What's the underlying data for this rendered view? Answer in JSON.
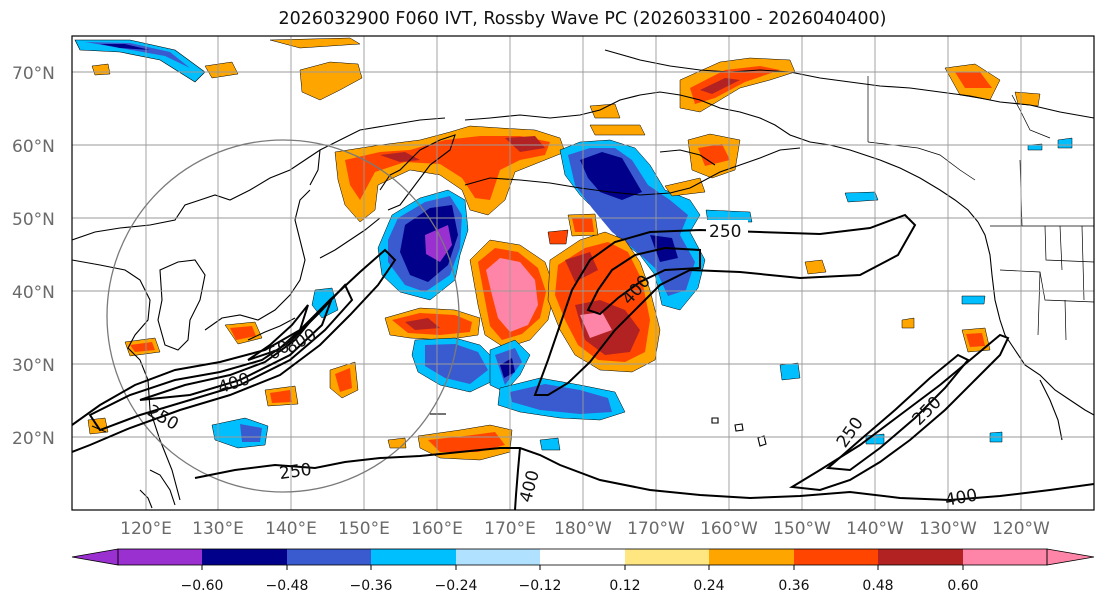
{
  "title": "2026032900 F060 IVT, Rossby Wave PC (2026033100 - 2026040400)",
  "map": {
    "lat_labels": [
      "70°N",
      "60°N",
      "50°N",
      "40°N",
      "30°N",
      "20°N"
    ],
    "lon_labels": [
      "120°E",
      "130°E",
      "140°E",
      "150°E",
      "160°E",
      "170°E",
      "180°W",
      "170°W",
      "160°W",
      "150°W",
      "140°W",
      "130°W",
      "120°W"
    ],
    "ivt_contour_labels": [
      "250",
      "400",
      "800",
      "60",
      "400",
      "250",
      "250",
      "400",
      "250",
      "250",
      "400",
      "250",
      "400"
    ]
  },
  "colorbar": {
    "ticks": [
      "−0.60",
      "−0.48",
      "−0.36",
      "−0.24",
      "−0.12",
      "0.12",
      "0.24",
      "0.36",
      "0.48",
      "0.60"
    ],
    "colors": [
      "#9b30d0",
      "#00008b",
      "#3a5bcf",
      "#00bfff",
      "#b0e2ff",
      "#ffffff",
      "#ffe680",
      "#ffa500",
      "#ff4500",
      "#b22222",
      "#ff85a8"
    ]
  }
}
